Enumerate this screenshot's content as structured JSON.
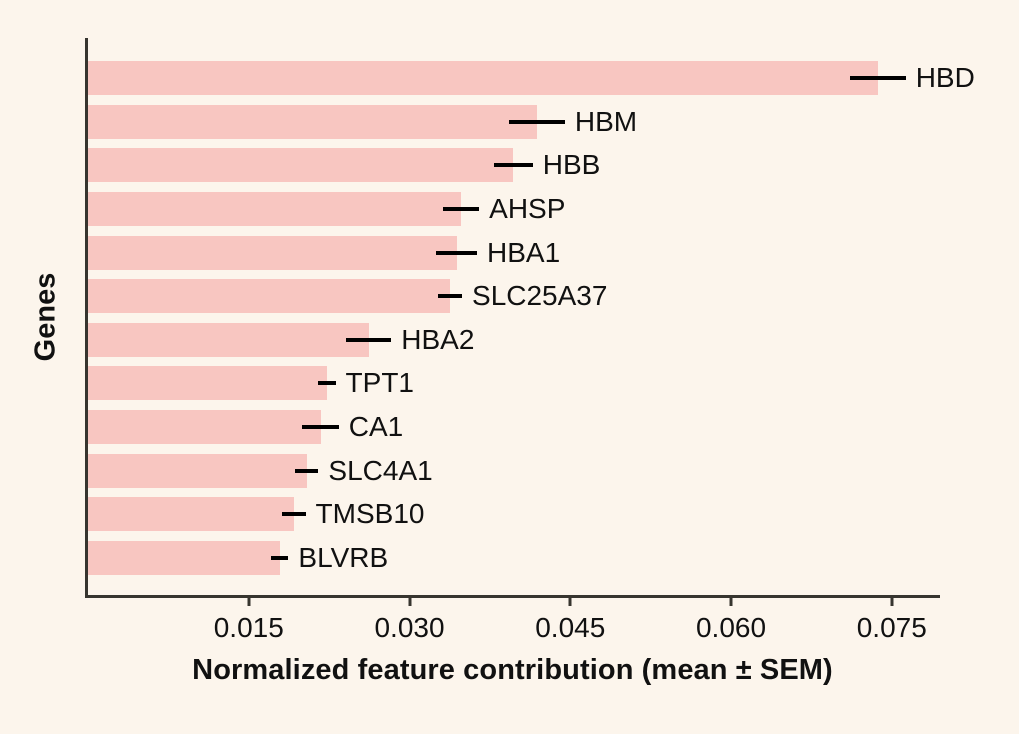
{
  "chart_data": {
    "type": "bar",
    "orientation": "horizontal",
    "title": "",
    "xlabel": "Normalized feature contribution (mean ± SEM)",
    "ylabel": "Genes",
    "categories": [
      "HBD",
      "HBM",
      "HBB",
      "AHSP",
      "HBA1",
      "SLC25A37",
      "HBA2",
      "TPT1",
      "CA1",
      "SLC4A1",
      "TMSB10",
      "BLVRB"
    ],
    "series": [
      {
        "name": "Normalized feature contribution (mean)",
        "values": [
          0.0737,
          0.0419,
          0.0397,
          0.0348,
          0.0344,
          0.0338,
          0.0262,
          0.0223,
          0.0217,
          0.0204,
          0.0192,
          0.0179
        ]
      }
    ],
    "errors_sem": [
      0.0026,
      0.0026,
      0.0018,
      0.0017,
      0.0019,
      0.0011,
      0.0021,
      0.0008,
      0.0017,
      0.0011,
      0.0011,
      0.0008
    ],
    "xlim": [
      0,
      0.0795
    ],
    "xticks": [
      0.015,
      0.03,
      0.045,
      0.06,
      0.075
    ],
    "xtick_labels": [
      "0.015",
      "0.030",
      "0.045",
      "0.060",
      "0.075"
    ],
    "grid": false,
    "legend": "none",
    "colors": {
      "background": "#FCF5EC",
      "bar_fill": "#F8C6C1",
      "error_bar": "#000000",
      "axis_spine": "#37352F",
      "text": "#111111"
    }
  }
}
